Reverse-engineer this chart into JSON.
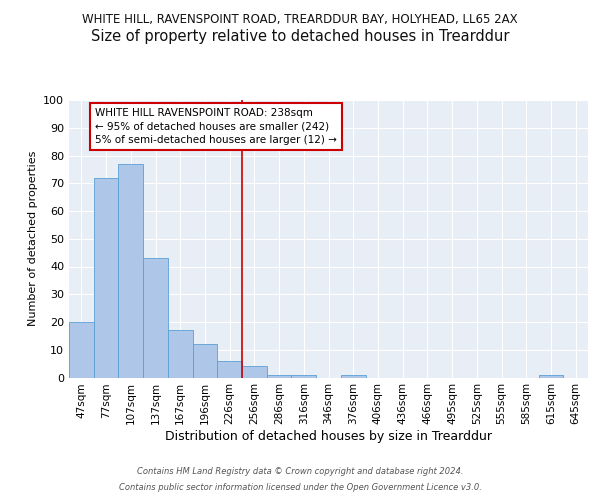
{
  "title1": "WHITE HILL, RAVENSPOINT ROAD, TREARDDUR BAY, HOLYHEAD, LL65 2AX",
  "title2": "Size of property relative to detached houses in Trearddur",
  "xlabel": "Distribution of detached houses by size in Trearddur",
  "ylabel": "Number of detached properties",
  "categories": [
    "47sqm",
    "77sqm",
    "107sqm",
    "137sqm",
    "167sqm",
    "196sqm",
    "226sqm",
    "256sqm",
    "286sqm",
    "316sqm",
    "346sqm",
    "376sqm",
    "406sqm",
    "436sqm",
    "466sqm",
    "495sqm",
    "525sqm",
    "555sqm",
    "585sqm",
    "615sqm",
    "645sqm"
  ],
  "values": [
    20,
    72,
    77,
    43,
    17,
    12,
    6,
    4,
    1,
    1,
    0,
    1,
    0,
    0,
    0,
    0,
    0,
    0,
    0,
    1,
    0
  ],
  "bar_color": "#aec6e8",
  "bar_edge_color": "#5a9fd4",
  "vline_color": "#cc0000",
  "annotation_text": "WHITE HILL RAVENSPOINT ROAD: 238sqm\n← 95% of detached houses are smaller (242)\n5% of semi-detached houses are larger (12) →",
  "annotation_box_color": "#ffffff",
  "annotation_box_edge_color": "#cc0000",
  "ylim": [
    0,
    100
  ],
  "yticks": [
    0,
    10,
    20,
    30,
    40,
    50,
    60,
    70,
    80,
    90,
    100
  ],
  "footer1": "Contains HM Land Registry data © Crown copyright and database right 2024.",
  "footer2": "Contains public sector information licensed under the Open Government Licence v3.0.",
  "bg_color": "#e8eef6",
  "grid_color": "#ffffff",
  "title1_fontsize": 8.5,
  "title2_fontsize": 10.5,
  "ylabel_fontsize": 8.0,
  "xlabel_fontsize": 9.0,
  "tick_fontsize": 7.5,
  "ytick_fontsize": 8.0,
  "ann_fontsize": 7.5,
  "footer_fontsize": 6.0
}
